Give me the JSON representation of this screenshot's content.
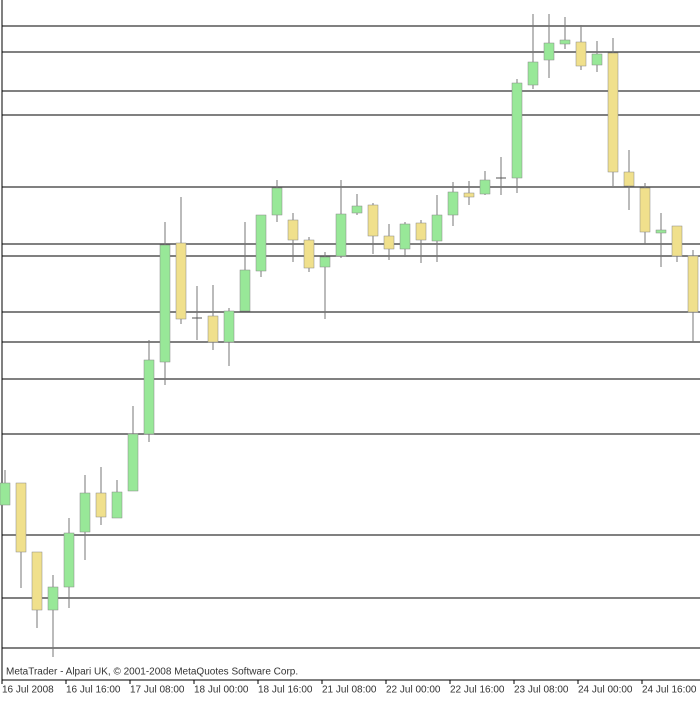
{
  "chart_data": {
    "type": "candlestick",
    "footer": "MetaTrader - Alpari UK, © 2001-2008 MetaQuotes Software Corp.",
    "categories": [
      "16 Jul 2008",
      null,
      null,
      null,
      "16 Jul 16:00",
      null,
      null,
      null,
      "17 Jul 08:00",
      null,
      null,
      null,
      "18 Jul 00:00",
      null,
      null,
      null,
      "18 Jul 16:00",
      null,
      null,
      null,
      "21 Jul 08:00",
      null,
      null,
      null,
      "22 Jul 00:00",
      null,
      null,
      null,
      "22 Jul 16:00",
      null,
      null,
      null,
      "23 Jul 08:00",
      null,
      null,
      null,
      "24 Jul 00:00",
      null,
      null,
      null,
      "24 Jul 16:00",
      null,
      null,
      null
    ],
    "open": [
      175,
      197,
      128,
      70,
      93,
      148,
      187,
      162,
      189,
      246,
      318,
      437,
      362,
      364,
      338,
      369,
      409,
      465,
      460,
      440,
      413,
      424,
      467,
      475,
      444,
      431,
      457,
      439,
      465,
      487,
      486,
      502,
      502,
      595,
      620,
      636,
      638,
      615,
      627,
      508,
      492,
      447,
      454,
      424
    ],
    "high": [
      210,
      197,
      128,
      105,
      162,
      205,
      213,
      200,
      274,
      340,
      458,
      483,
      394,
      395,
      372,
      458,
      465,
      500,
      467,
      443,
      428,
      500,
      486,
      477,
      456,
      458,
      460,
      485,
      498,
      499,
      509,
      523,
      601,
      666,
      666,
      663,
      655,
      639,
      642,
      530,
      497,
      467,
      454,
      430
    ],
    "low": [
      175,
      92,
      52,
      23,
      72,
      120,
      155,
      162,
      189,
      238,
      295,
      356,
      340,
      330,
      314,
      369,
      403,
      458,
      418,
      408,
      361,
      422,
      465,
      426,
      420,
      423,
      417,
      418,
      454,
      475,
      485,
      485,
      487,
      591,
      602,
      631,
      610,
      608,
      494,
      470,
      436,
      413,
      418,
      338
    ],
    "close": [
      197,
      128,
      70,
      93,
      147,
      187,
      163,
      188,
      246,
      320,
      435,
      361,
      362,
      338,
      369,
      410,
      465,
      492,
      440,
      412,
      423,
      466,
      474,
      444,
      431,
      456,
      440,
      465,
      488,
      483,
      500,
      502,
      597,
      618,
      637,
      640,
      614,
      626,
      508,
      494,
      448,
      450,
      424,
      368
    ],
    "levels": [
      654,
      628,
      589,
      565,
      493,
      436,
      424,
      368,
      338,
      301,
      246,
      145,
      82,
      32
    ],
    "up_color": "#98e898",
    "down_color": "#f0e08c",
    "ylim": [
      0,
      680
    ]
  }
}
